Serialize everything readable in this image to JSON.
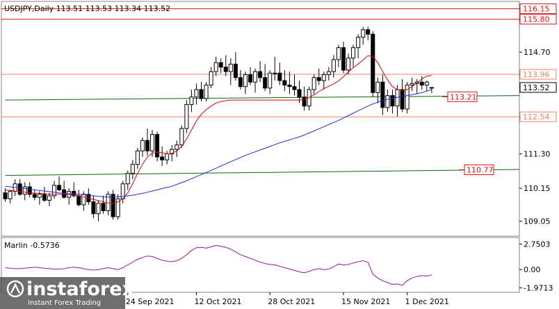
{
  "main_header": {
    "label": "USDJPY,Daily  113.51 113.53 113.34 113.52"
  },
  "indicator_header": {
    "label": "Marlin -0.5736"
  },
  "logo": {
    "name": "instaforex",
    "tagline": "Instant Forex Trading"
  },
  "colors": {
    "background": "#ffffff",
    "candle_bull": "#ffffff",
    "candle_bear": "#000000",
    "ma_fast": "#e00000",
    "ma_slow": "#1a2fd6",
    "trend_line": "#0a6b0a",
    "level_line": "#f08060",
    "oscillator": "#9b159b",
    "label_red": "#e01010"
  },
  "chart_data": [
    {
      "type": "candlestick",
      "title": "USDJPY,Daily",
      "ohlc_last": {
        "open": 113.51,
        "high": 113.53,
        "low": 113.34,
        "close": 113.52
      },
      "x_tick_labels": [
        "24 Sep 2021",
        "12 Oct 2021",
        "28 Oct 2021",
        "15 Nov 2021",
        "1 Dec 2021"
      ],
      "y_tick_labels": [
        "109.05",
        "110.15",
        "111.30",
        "112.54",
        "113.52",
        "113.96",
        "114.70",
        "115.80",
        "116.15"
      ],
      "ylim": [
        108.6,
        116.35
      ],
      "levels": [
        {
          "value": 116.15,
          "label": "116.15",
          "color": "#e01010",
          "style": "box"
        },
        {
          "value": 115.8,
          "label": "115.80",
          "color": "#e01010",
          "style": "box"
        },
        {
          "value": 113.96,
          "label": "113.96",
          "color": "#f08060",
          "style": "box"
        },
        {
          "value": 112.54,
          "label": "112.54",
          "color": "#f08060",
          "style": "box"
        },
        {
          "value": 113.52,
          "label": "113.52",
          "color": "#000000",
          "style": "price"
        }
      ],
      "trend_labels": [
        {
          "label": "113.21",
          "value": 113.21
        },
        {
          "label": "110.77",
          "value": 110.77
        }
      ],
      "candles": [
        [
          110.0,
          110.15,
          109.7,
          109.8
        ],
        [
          109.8,
          110.1,
          109.65,
          110.05
        ],
        [
          110.05,
          110.45,
          109.9,
          110.3
        ],
        [
          110.3,
          110.45,
          109.9,
          109.95
        ],
        [
          109.95,
          110.35,
          109.75,
          110.2
        ],
        [
          110.2,
          110.35,
          109.85,
          109.95
        ],
        [
          109.95,
          110.1,
          109.75,
          109.85
        ],
        [
          109.85,
          110.05,
          109.6,
          109.95
        ],
        [
          109.95,
          110.2,
          109.7,
          109.75
        ],
        [
          109.75,
          110.0,
          109.55,
          109.9
        ],
        [
          109.9,
          110.4,
          109.8,
          110.25
        ],
        [
          110.25,
          110.55,
          110.05,
          110.1
        ],
        [
          110.1,
          110.4,
          109.8,
          109.85
        ],
        [
          109.85,
          110.15,
          109.6,
          110.05
        ],
        [
          110.05,
          110.35,
          109.85,
          109.9
        ],
        [
          109.9,
          110.1,
          109.55,
          109.6
        ],
        [
          109.6,
          110.05,
          109.4,
          109.95
        ],
        [
          109.95,
          110.15,
          109.6,
          109.7
        ],
        [
          109.7,
          109.9,
          109.15,
          109.3
        ],
        [
          109.3,
          109.75,
          109.05,
          109.65
        ],
        [
          109.65,
          109.9,
          109.3,
          109.4
        ],
        [
          109.4,
          110.05,
          109.25,
          109.95
        ],
        [
          109.95,
          110.1,
          109.1,
          109.2
        ],
        [
          109.2,
          109.95,
          109.1,
          109.8
        ],
        [
          109.8,
          110.4,
          109.65,
          110.3
        ],
        [
          110.3,
          110.75,
          110.1,
          110.65
        ],
        [
          110.65,
          111.1,
          110.45,
          110.95
        ],
        [
          110.95,
          111.5,
          110.8,
          111.4
        ],
        [
          111.4,
          111.85,
          111.2,
          111.75
        ],
        [
          111.75,
          112.15,
          111.25,
          111.4
        ],
        [
          111.4,
          112.1,
          111.2,
          111.95
        ],
        [
          111.95,
          112.05,
          111.05,
          111.2
        ],
        [
          111.2,
          111.55,
          110.9,
          111.1
        ],
        [
          111.1,
          111.4,
          110.95,
          111.3
        ],
        [
          111.3,
          111.6,
          111.05,
          111.45
        ],
        [
          111.45,
          111.75,
          111.2,
          111.6
        ],
        [
          111.6,
          112.25,
          111.5,
          112.15
        ],
        [
          112.15,
          113.1,
          112.0,
          112.95
        ],
        [
          112.95,
          113.45,
          112.7,
          113.2
        ],
        [
          113.2,
          113.65,
          112.95,
          113.45
        ],
        [
          113.45,
          113.7,
          113.05,
          113.15
        ],
        [
          113.15,
          113.7,
          113.05,
          113.6
        ],
        [
          113.6,
          114.2,
          113.5,
          114.05
        ],
        [
          114.05,
          114.55,
          113.9,
          114.35
        ],
        [
          114.35,
          114.5,
          114.0,
          114.2
        ],
        [
          114.2,
          114.6,
          113.9,
          114.05
        ],
        [
          114.05,
          114.5,
          113.6,
          114.3
        ],
        [
          114.3,
          114.7,
          113.75,
          113.85
        ],
        [
          113.85,
          114.1,
          113.45,
          113.55
        ],
        [
          113.55,
          114.05,
          113.3,
          113.95
        ],
        [
          113.95,
          114.2,
          113.6,
          113.7
        ],
        [
          113.7,
          114.15,
          113.35,
          114.05
        ],
        [
          114.05,
          114.4,
          113.7,
          113.85
        ],
        [
          113.85,
          114.3,
          113.4,
          113.5
        ],
        [
          113.5,
          114.1,
          113.3,
          114.0
        ],
        [
          114.0,
          114.55,
          113.75,
          114.0
        ],
        [
          114.0,
          114.35,
          113.6,
          113.75
        ],
        [
          113.75,
          114.1,
          113.4,
          113.6
        ],
        [
          113.6,
          114.05,
          113.3,
          113.55
        ],
        [
          113.55,
          113.95,
          113.25,
          113.45
        ],
        [
          113.45,
          113.75,
          113.0,
          113.2
        ],
        [
          113.2,
          113.55,
          112.75,
          112.9
        ],
        [
          112.9,
          113.55,
          112.75,
          113.45
        ],
        [
          113.45,
          113.95,
          113.3,
          113.85
        ],
        [
          113.85,
          114.15,
          113.6,
          113.75
        ],
        [
          113.75,
          114.05,
          113.45,
          113.95
        ],
        [
          113.95,
          114.2,
          113.75,
          114.05
        ],
        [
          114.05,
          114.6,
          113.85,
          114.45
        ],
        [
          114.45,
          114.95,
          114.2,
          114.85
        ],
        [
          114.85,
          115.05,
          114.0,
          114.1
        ],
        [
          114.1,
          114.65,
          113.95,
          114.5
        ],
        [
          114.5,
          114.95,
          114.2,
          114.85
        ],
        [
          114.85,
          115.3,
          114.5,
          115.2
        ],
        [
          115.2,
          115.55,
          114.95,
          115.45
        ],
        [
          115.45,
          115.55,
          115.1,
          115.3
        ],
        [
          115.3,
          115.4,
          113.2,
          113.35
        ],
        [
          113.35,
          113.85,
          113.0,
          113.7
        ],
        [
          113.7,
          113.95,
          112.6,
          112.85
        ],
        [
          112.85,
          113.45,
          112.7,
          113.25
        ],
        [
          113.25,
          113.45,
          112.65,
          112.9
        ],
        [
          112.9,
          113.6,
          112.55,
          113.45
        ],
        [
          113.45,
          113.8,
          112.7,
          112.8
        ],
        [
          112.8,
          113.7,
          112.65,
          113.6
        ],
        [
          113.6,
          113.85,
          113.4,
          113.65
        ],
        [
          113.65,
          113.8,
          113.3,
          113.7
        ],
        [
          113.7,
          113.9,
          113.45,
          113.6
        ],
        [
          113.6,
          113.75,
          113.4,
          113.7
        ],
        [
          113.51,
          113.53,
          113.34,
          113.52
        ]
      ],
      "ma_fast": [
        110.1,
        110.08,
        110.06,
        110.04,
        110.02,
        110.0,
        109.99,
        109.98,
        109.97,
        109.96,
        109.95,
        109.95,
        109.95,
        109.94,
        109.93,
        109.9,
        109.86,
        109.82,
        109.78,
        109.74,
        109.7,
        109.66,
        109.65,
        109.7,
        109.8,
        110.0,
        110.3,
        110.65,
        110.95,
        111.2,
        111.32,
        111.36,
        111.34,
        111.3,
        111.32,
        111.4,
        111.55,
        111.8,
        112.1,
        112.4,
        112.62,
        112.78,
        112.9,
        113.0,
        113.05,
        113.08,
        113.1,
        113.1,
        113.1,
        113.1,
        113.1,
        113.1,
        113.1,
        113.1,
        113.1,
        113.1,
        113.1,
        113.1,
        113.1,
        113.1,
        113.1,
        113.12,
        113.18,
        113.28,
        113.38,
        113.48,
        113.56,
        113.64,
        113.74,
        113.88,
        114.04,
        114.18,
        114.3,
        114.44,
        114.58,
        114.56,
        114.35,
        114.05,
        113.78,
        113.55,
        113.45,
        113.42,
        113.45,
        113.55,
        113.68,
        113.8,
        113.9,
        113.92
      ],
      "ma_slow": [
        110.22,
        110.2,
        110.18,
        110.16,
        110.14,
        110.12,
        110.1,
        110.08,
        110.06,
        110.04,
        110.02,
        110.0,
        109.98,
        109.97,
        109.96,
        109.95,
        109.94,
        109.92,
        109.9,
        109.88,
        109.87,
        109.86,
        109.86,
        109.87,
        109.88,
        109.9,
        109.92,
        109.95,
        109.98,
        110.02,
        110.06,
        110.1,
        110.14,
        110.18,
        110.22,
        110.28,
        110.34,
        110.4,
        110.47,
        110.54,
        110.61,
        110.68,
        110.75,
        110.82,
        110.9,
        110.97,
        111.04,
        111.11,
        111.18,
        111.25,
        111.31,
        111.37,
        111.43,
        111.49,
        111.55,
        111.61,
        111.67,
        111.72,
        111.77,
        111.82,
        111.87,
        111.93,
        112.0,
        112.07,
        112.14,
        112.21,
        112.28,
        112.35,
        112.42,
        112.5,
        112.58,
        112.66,
        112.74,
        112.82,
        112.9,
        112.97,
        113.03,
        113.08,
        113.12,
        113.16,
        113.19,
        113.22,
        113.25,
        113.28,
        113.31,
        113.35,
        113.4,
        113.45
      ],
      "trend_lines": [
        {
          "from": [
            0,
            113.1
          ],
          "to": [
            112,
            113.25
          ]
        },
        {
          "from": [
            0,
            110.58
          ],
          "to": [
            112,
            110.78
          ]
        }
      ]
    },
    {
      "type": "line",
      "title": "Marlin -0.5736",
      "y_tick_labels": [
        "2.7503",
        "0.00",
        "-1.9713"
      ],
      "ylim": [
        -2.3,
        3.3
      ],
      "series": [
        {
          "name": "Marlin",
          "values": [
            0.2,
            0.15,
            0.1,
            0.1,
            0.15,
            0.2,
            0.25,
            0.2,
            0.15,
            0.1,
            0.05,
            0.05,
            0.1,
            0.2,
            0.25,
            0.2,
            0.1,
            0.0,
            -0.05,
            0.0,
            0.1,
            0.2,
            0.1,
            0.0,
            0.2,
            0.5,
            0.8,
            1.1,
            1.3,
            1.45,
            1.4,
            1.2,
            1.0,
            0.9,
            0.85,
            0.95,
            1.2,
            1.6,
            2.05,
            2.35,
            2.4,
            2.3,
            2.45,
            2.6,
            2.5,
            2.4,
            2.2,
            1.9,
            1.6,
            1.4,
            1.2,
            1.0,
            0.8,
            0.65,
            0.55,
            0.5,
            0.35,
            0.2,
            0.05,
            -0.1,
            -0.25,
            -0.35,
            -0.2,
            0.0,
            0.1,
            0.0,
            0.05,
            0.3,
            0.6,
            0.5,
            0.55,
            0.7,
            0.85,
            0.95,
            0.8,
            -0.5,
            -0.9,
            -1.2,
            -1.4,
            -1.6,
            -1.55,
            -1.7,
            -1.2,
            -0.9,
            -0.75,
            -0.65,
            -0.7,
            -0.57
          ]
        }
      ]
    }
  ]
}
